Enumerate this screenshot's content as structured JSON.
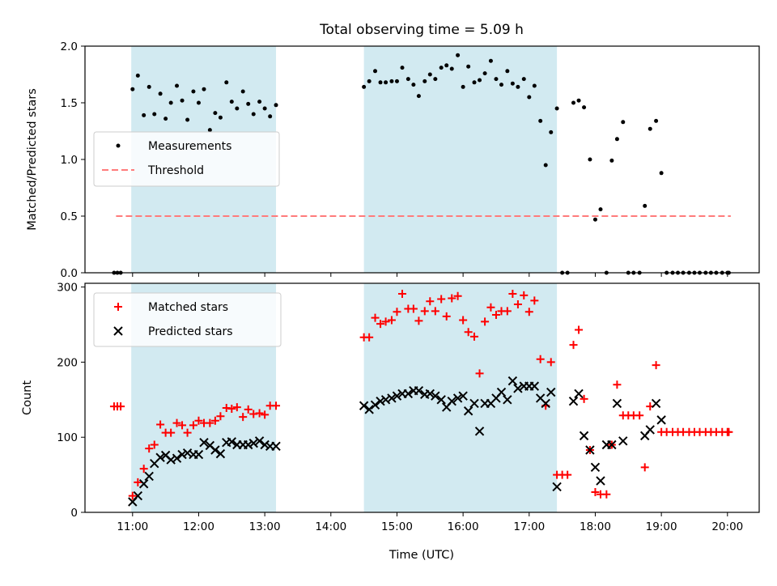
{
  "chart_data": {
    "type": "scatter",
    "title": "Total observing time = 5.09 h",
    "x_axis": {
      "label": "Time (UTC)",
      "range_hours": [
        10.28,
        20.48
      ],
      "tick_hours": [
        11,
        12,
        13,
        14,
        15,
        16,
        17,
        18,
        19,
        20
      ],
      "tick_labels": [
        "11:00",
        "12:00",
        "13:00",
        "14:00",
        "15:00",
        "16:00",
        "17:00",
        "18:00",
        "19:00",
        "20:00"
      ]
    },
    "shaded_intervals_hours": [
      [
        10.98,
        13.17
      ],
      [
        14.5,
        17.42
      ]
    ],
    "shade_color": "#add8e6",
    "panels": [
      {
        "name": "ratio",
        "ylabel": "Matched/Predicted stars",
        "ylim": [
          0,
          2.0
        ],
        "yticks": [
          0.0,
          0.5,
          1.0,
          1.5,
          2.0
        ],
        "ytick_labels": [
          "0.0",
          "0.5",
          "1.0",
          "1.5",
          "2.0"
        ],
        "legend": {
          "position": "center-left",
          "entries": [
            "Measurements",
            "Threshold"
          ]
        },
        "threshold": {
          "name": "Threshold",
          "value": 0.5,
          "x_range_hours": [
            10.75,
            20.05
          ],
          "color": "#ff7b7b"
        },
        "series": [
          {
            "name": "Measurements",
            "marker": "dot",
            "color": "#000000",
            "x": [
              10.72,
              10.77,
              10.82,
              11.0,
              11.08,
              11.17,
              11.25,
              11.33,
              11.42,
              11.5,
              11.58,
              11.67,
              11.75,
              11.83,
              11.92,
              12.0,
              12.08,
              12.17,
              12.25,
              12.33,
              12.42,
              12.5,
              12.58,
              12.67,
              12.75,
              12.83,
              12.92,
              13.0,
              13.08,
              13.17,
              14.5,
              14.58,
              14.67,
              14.75,
              14.83,
              14.92,
              15.0,
              15.08,
              15.17,
              15.25,
              15.33,
              15.42,
              15.5,
              15.58,
              15.67,
              15.75,
              15.83,
              15.92,
              16.0,
              16.08,
              16.17,
              16.25,
              16.33,
              16.42,
              16.5,
              16.58,
              16.67,
              16.75,
              16.83,
              16.92,
              17.0,
              17.08,
              17.17,
              17.25,
              17.33,
              17.42,
              17.5,
              17.58,
              17.67,
              17.75,
              17.83,
              17.92,
              18.0,
              18.08,
              18.17,
              18.25,
              18.33,
              18.42,
              18.5,
              18.58,
              18.67,
              18.75,
              18.83,
              18.92,
              19.0,
              19.08,
              19.17,
              19.25,
              19.33,
              19.42,
              19.5,
              19.58,
              19.67,
              19.75,
              19.83,
              19.92,
              20.0,
              20.02
            ],
            "y": [
              0.0,
              0.0,
              0.0,
              1.62,
              1.74,
              1.39,
              1.64,
              1.4,
              1.58,
              1.36,
              1.5,
              1.65,
              1.52,
              1.35,
              1.6,
              1.5,
              1.62,
              1.26,
              1.41,
              1.37,
              1.68,
              1.51,
              1.45,
              1.6,
              1.49,
              1.4,
              1.51,
              1.45,
              1.38,
              1.48,
              1.64,
              1.69,
              1.78,
              1.68,
              1.68,
              1.69,
              1.69,
              1.81,
              1.71,
              1.66,
              1.56,
              1.69,
              1.75,
              1.71,
              1.81,
              1.83,
              1.8,
              1.92,
              1.64,
              1.82,
              1.68,
              1.7,
              1.76,
              1.87,
              1.71,
              1.66,
              1.78,
              1.67,
              1.64,
              1.71,
              1.55,
              1.65,
              1.34,
              0.95,
              1.24,
              1.45,
              0.0,
              0.0,
              1.5,
              1.52,
              1.46,
              1.0,
              0.47,
              0.56,
              0.0,
              0.99,
              1.18,
              1.33,
              0.0,
              0.0,
              0.0,
              0.59,
              1.27,
              1.34,
              0.88,
              0.0,
              0.0,
              0.0,
              0.0,
              0.0,
              0.0,
              0.0,
              0.0,
              0.0,
              0.0,
              0.0,
              0.0,
              0.0
            ]
          }
        ]
      },
      {
        "name": "count",
        "ylabel": "Count",
        "ylim": [
          0,
          305
        ],
        "yticks": [
          0,
          100,
          200,
          300
        ],
        "ytick_labels": [
          "0",
          "100",
          "200",
          "300"
        ],
        "legend": {
          "position": "top-left",
          "entries": [
            "Matched stars",
            "Predicted stars"
          ]
        },
        "series": [
          {
            "name": "Matched stars",
            "marker": "plus",
            "color": "#ff0000",
            "x": [
              10.72,
              10.77,
              10.82,
              11.0,
              11.08,
              11.17,
              11.25,
              11.33,
              11.42,
              11.5,
              11.58,
              11.67,
              11.75,
              11.83,
              11.92,
              12.0,
              12.08,
              12.17,
              12.25,
              12.33,
              12.42,
              12.5,
              12.58,
              12.67,
              12.75,
              12.83,
              12.92,
              13.0,
              13.08,
              13.17,
              14.5,
              14.58,
              14.67,
              14.75,
              14.83,
              14.92,
              15.0,
              15.08,
              15.17,
              15.25,
              15.33,
              15.42,
              15.5,
              15.58,
              15.67,
              15.75,
              15.83,
              15.92,
              16.0,
              16.08,
              16.17,
              16.25,
              16.33,
              16.42,
              16.5,
              16.58,
              16.67,
              16.75,
              16.83,
              16.92,
              17.0,
              17.08,
              17.17,
              17.25,
              17.33,
              17.42,
              17.5,
              17.58,
              17.67,
              17.75,
              17.83,
              17.92,
              18.0,
              18.08,
              18.17,
              18.25,
              18.33,
              18.42,
              18.5,
              18.58,
              18.67,
              18.75,
              18.83,
              18.92,
              19.0,
              19.08,
              19.17,
              19.25,
              19.33,
              19.42,
              19.5,
              19.58,
              19.67,
              19.75,
              19.83,
              19.92,
              20.0,
              20.02
            ],
            "y": [
              141,
              141,
              141,
              22,
              40,
              58,
              85,
              90,
              117,
              106,
              106,
              119,
              116,
              106,
              116,
              122,
              119,
              119,
              122,
              128,
              139,
              138,
              140,
              127,
              137,
              131,
              132,
              130,
              142,
              142,
              233,
              233,
              259,
              251,
              254,
              256,
              267,
              291,
              271,
              271,
              255,
              268,
              281,
              268,
              284,
              261,
              285,
              288,
              256,
              240,
              234,
              185,
              254,
              273,
              263,
              268,
              268,
              291,
              277,
              289,
              267,
              282,
              204,
              142,
              200,
              50,
              50,
              50,
              223,
              243,
              151,
              83,
              27,
              24,
              24,
              90,
              170,
              129,
              129,
              129,
              129,
              60,
              141,
              196,
              107,
              107,
              107,
              107,
              107,
              107,
              107,
              107,
              107,
              107,
              107,
              107,
              107,
              107
            ]
          },
          {
            "name": "Predicted stars",
            "marker": "x",
            "color": "#000000",
            "x": [
              11.0,
              11.08,
              11.17,
              11.25,
              11.33,
              11.42,
              11.5,
              11.58,
              11.67,
              11.75,
              11.83,
              11.92,
              12.0,
              12.08,
              12.17,
              12.25,
              12.33,
              12.42,
              12.5,
              12.58,
              12.67,
              12.75,
              12.83,
              12.92,
              13.0,
              13.08,
              13.17,
              14.5,
              14.58,
              14.67,
              14.75,
              14.83,
              14.92,
              15.0,
              15.08,
              15.17,
              15.25,
              15.33,
              15.42,
              15.5,
              15.58,
              15.67,
              15.75,
              15.83,
              15.92,
              16.0,
              16.08,
              16.17,
              16.25,
              16.33,
              16.42,
              16.5,
              16.58,
              16.67,
              16.75,
              16.83,
              16.92,
              17.0,
              17.08,
              17.17,
              17.25,
              17.33,
              17.42,
              17.67,
              17.75,
              17.83,
              17.92,
              18.0,
              18.08,
              18.17,
              18.25,
              18.33,
              18.42,
              18.75,
              18.83,
              18.92,
              19.0
            ],
            "y": [
              14,
              22,
              38,
              48,
              65,
              73,
              76,
              70,
              72,
              77,
              79,
              77,
              77,
              93,
              89,
              83,
              78,
              93,
              94,
              90,
              90,
              90,
              92,
              95,
              90,
              88,
              88,
              142,
              137,
              143,
              148,
              150,
              152,
              155,
              158,
              158,
              162,
              162,
              157,
              158,
              155,
              150,
              140,
              148,
              152,
              155,
              135,
              145,
              108,
              145,
              145,
              152,
              160,
              150,
              175,
              165,
              168,
              168,
              168,
              152,
              145,
              160,
              34,
              148,
              158,
              102,
              83,
              60,
              42,
              90,
              90,
              145,
              95,
              102,
              110,
              145,
              123
            ]
          }
        ]
      }
    ]
  }
}
